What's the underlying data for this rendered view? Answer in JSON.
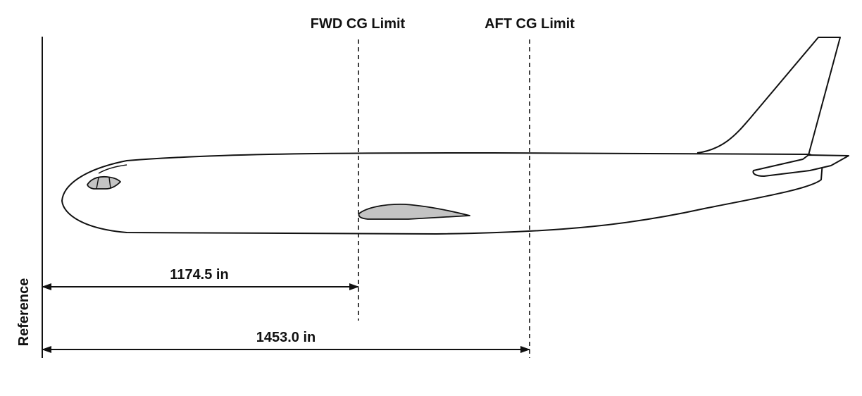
{
  "labels": {
    "fwd_limit": "FWD CG Limit",
    "aft_limit": "AFT CG Limit",
    "reference": "Reference"
  },
  "dimensions": {
    "fwd_distance": "1174.5 in",
    "aft_distance": "1453.0 in"
  },
  "colors": {
    "line": "#111111",
    "fill_gray": "#c4c4c4",
    "background": "#ffffff"
  }
}
